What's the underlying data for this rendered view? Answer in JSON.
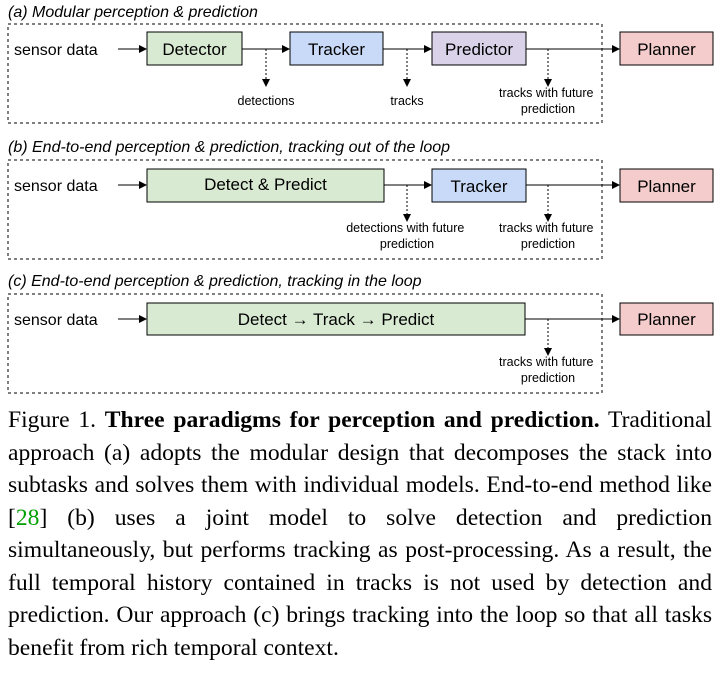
{
  "panels": [
    {
      "title": "(a) Modular perception & prediction",
      "input": "sensor data",
      "boxes": [
        "Detector",
        "Tracker",
        "Predictor"
      ],
      "outputs": [
        "detections",
        "tracks",
        "tracks with future prediction"
      ]
    },
    {
      "title": "(b) End-to-end perception & prediction, tracking out of the loop",
      "input": "sensor data",
      "boxes": [
        "Detect & Predict",
        "Tracker"
      ],
      "outputs": [
        "detections with future prediction",
        "tracks with future prediction"
      ]
    },
    {
      "title": "(c) End-to-end perception & prediction, tracking in the loop",
      "input": "sensor data",
      "boxes": [
        "Detect → Track → Predict"
      ],
      "outputs": [
        "tracks with future prediction"
      ]
    }
  ],
  "planner_label": "Planner",
  "colors": {
    "detector_fill": "#d9ead3",
    "tracker_fill": "#c9daf8",
    "predictor_fill": "#d9d2e9",
    "planner_fill": "#f4cccc",
    "border": "#000000"
  },
  "caption": {
    "label": "Figure 1.",
    "title": "Three paradigms for perception and prediction.",
    "body_before_ref": "Traditional approach (a) adopts the modular design that decomposes the stack into subtasks and solves them with individual models. End-to-end method like [",
    "ref": "28",
    "body_after_ref": "] (b) uses a joint model to solve detection and prediction simultaneously, but performs tracking as post-processing. As a result, the full temporal history contained in tracks is not used by detection and prediction. Our approach (c) brings tracking into the loop so that all tasks benefit from rich temporal context."
  }
}
